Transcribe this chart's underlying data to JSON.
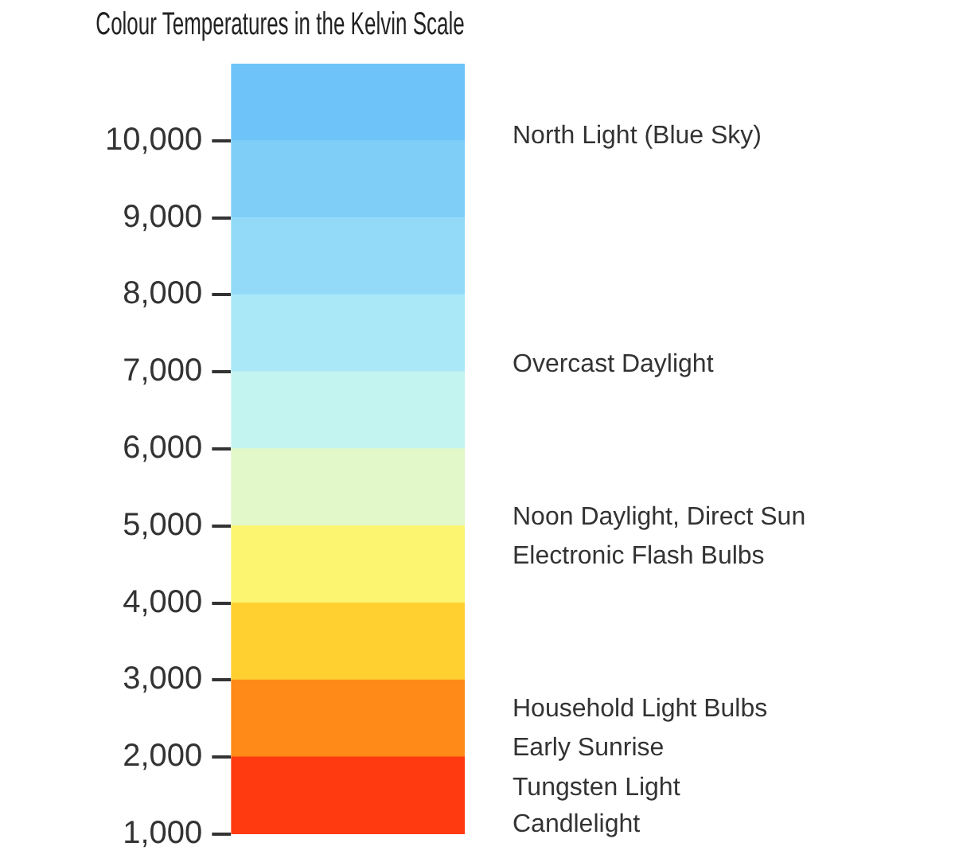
{
  "chart_data": {
    "type": "bar",
    "title": "Colour Temperatures in the Kelvin Scale",
    "categories": [
      null
    ],
    "stacked": true,
    "series": [
      {
        "color": "#ff3a10",
        "values": [
          2000
        ]
      },
      {
        "color": "#ff8a18",
        "values": [
          1000
        ]
      },
      {
        "color": "#ffd030",
        "values": [
          1000
        ]
      },
      {
        "color": "#fbf570",
        "values": [
          1000
        ]
      },
      {
        "color": "#e2f8c8",
        "values": [
          1000
        ]
      },
      {
        "color": "#c4f4f0",
        "values": [
          1000
        ]
      },
      {
        "color": "#aae8f8",
        "values": [
          1000
        ]
      },
      {
        "color": "#92daf8",
        "values": [
          1000
        ]
      },
      {
        "color": "#7ecef8",
        "values": [
          1000
        ]
      },
      {
        "color": "#6ec4f8",
        "values": [
          1000
        ]
      }
    ],
    "ylim": [
      1000,
      11000
    ],
    "yticks": [
      {
        "value": 1000,
        "label": "1,000"
      },
      {
        "value": 2000,
        "label": "2,000"
      },
      {
        "value": 3000,
        "label": "3,000"
      },
      {
        "value": 4000,
        "label": "4,000"
      },
      {
        "value": 5000,
        "label": "5,000"
      },
      {
        "value": 6000,
        "label": "6,000"
      },
      {
        "value": 7000,
        "label": "7,000"
      },
      {
        "value": 8000,
        "label": "8,000"
      },
      {
        "value": 9000,
        "label": "9,000"
      },
      {
        "value": 10000,
        "label": "10,000"
      }
    ],
    "annotations": [
      "North Light (Blue Sky)",
      "Overcast Daylight",
      "Noon Daylight, Direct Sun",
      "Electronic Flash Bulbs",
      "Household Light Bulbs",
      "Early Sunrise",
      "Tungsten Light",
      "Candlelight"
    ],
    "grid": false,
    "legend": false
  }
}
